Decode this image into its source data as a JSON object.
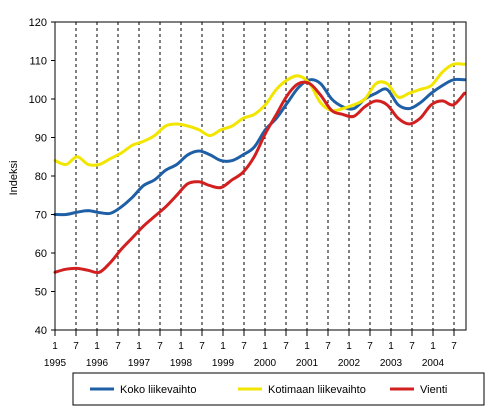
{
  "chart_data": {
    "type": "line",
    "title": "",
    "xlabel": "",
    "ylabel": "Indeksi",
    "ylim": [
      40,
      120
    ],
    "yticks": [
      40,
      50,
      60,
      70,
      80,
      90,
      100,
      110,
      120
    ],
    "x_tick_labels": [
      "1",
      "7",
      "1",
      "7",
      "1",
      "7",
      "1",
      "7",
      "1",
      "7",
      "1",
      "7",
      "1",
      "7",
      "1",
      "7",
      "1",
      "7",
      "1",
      "7"
    ],
    "year_labels": [
      "1995",
      "1996",
      "1997",
      "1998",
      "1999",
      "2000",
      "2001",
      "2002",
      "2003",
      "2004"
    ],
    "grid": "vertical dashed lines at every 6 months",
    "legend_position": "bottom",
    "x_start": "1995-01",
    "x_end": "2004-09",
    "series": [
      {
        "name": "Koko liikevaihto",
        "color": "#1f5fa6",
        "values": [
          70.0,
          70.0,
          70.6,
          71.0,
          70.5,
          70.3,
          72.0,
          74.5,
          77.5,
          79.0,
          81.5,
          83.0,
          85.5,
          86.5,
          85.5,
          84.0,
          84.0,
          85.5,
          87.5,
          92.0,
          95.0,
          99.0,
          103.0,
          105.0,
          104.0,
          100.0,
          98.0,
          97.5,
          100.0,
          101.5,
          102.5,
          98.5,
          97.5,
          99.0,
          101.5,
          103.5,
          105.0,
          105.0
        ]
      },
      {
        "name": "Kotimaan liikevaihto",
        "color": "#f2e600",
        "values": [
          84.0,
          83.0,
          85.0,
          83.0,
          83.0,
          84.5,
          86.0,
          88.0,
          89.0,
          90.5,
          93.0,
          93.5,
          93.0,
          92.0,
          90.5,
          92.0,
          93.0,
          95.0,
          96.0,
          98.5,
          102.5,
          105.0,
          106.0,
          104.0,
          99.0,
          97.0,
          97.5,
          98.5,
          100.0,
          104.0,
          104.0,
          100.5,
          101.5,
          102.5,
          103.5,
          107.0,
          109.0,
          109.0
        ]
      },
      {
        "name": "Vienti",
        "color": "#d22020",
        "values": [
          55.0,
          55.8,
          56.0,
          55.5,
          55.0,
          57.5,
          61.0,
          64.0,
          67.0,
          69.5,
          72.0,
          75.0,
          78.0,
          78.5,
          77.5,
          77.0,
          79.0,
          81.0,
          85.0,
          91.0,
          96.0,
          101.0,
          104.0,
          104.0,
          101.0,
          97.0,
          96.0,
          95.5,
          98.0,
          99.5,
          98.5,
          95.0,
          93.5,
          95.0,
          98.5,
          99.5,
          98.5,
          101.5
        ]
      }
    ]
  }
}
